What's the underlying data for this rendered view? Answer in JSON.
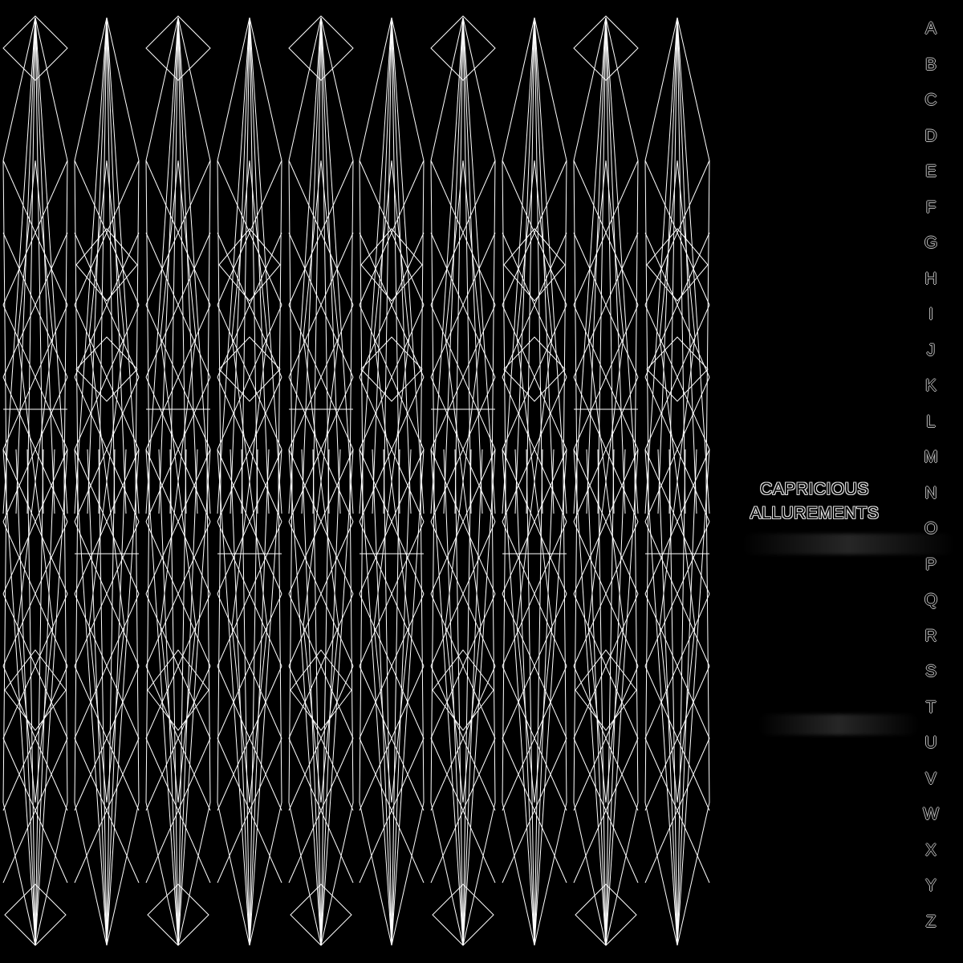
{
  "artwork": {
    "title_line_1": "CAPRICIOUS",
    "title_line_2": "ALLUREMENTS",
    "alphabet": [
      "A",
      "B",
      "C",
      "D",
      "E",
      "F",
      "G",
      "H",
      "I",
      "J",
      "K",
      "L",
      "M",
      "N",
      "O",
      "P",
      "Q",
      "R",
      "S",
      "T",
      "U",
      "V",
      "W",
      "X",
      "Y",
      "Z"
    ],
    "colors": {
      "background": "#000000",
      "line": "#ffffff",
      "text_outline": "#dddddd"
    }
  }
}
